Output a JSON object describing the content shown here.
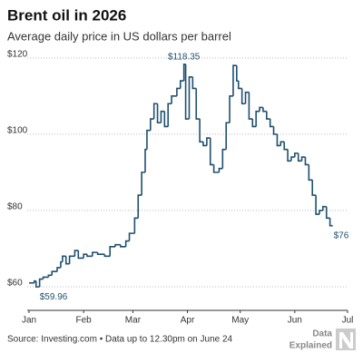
{
  "chart_data": {
    "type": "step-line",
    "title": "Brent oil in 2026",
    "subtitle": "Average daily price in US dollars per barrel",
    "source": "Source: Investing.com • Data up to 12.30pm on June 24",
    "brand": [
      "Data",
      "Explained"
    ],
    "color": "#1f4f6e",
    "grid": true,
    "xlim": [
      0,
      181
    ],
    "xticks": [
      {
        "value": 0,
        "label": "Jan"
      },
      {
        "value": 31,
        "label": "Feb"
      },
      {
        "value": 59,
        "label": "Mar"
      },
      {
        "value": 90,
        "label": "Apr"
      },
      {
        "value": 120,
        "label": "May"
      },
      {
        "value": 151,
        "label": "Jun"
      },
      {
        "value": 181,
        "label": "Jul"
      }
    ],
    "ylim": [
      53.8,
      122.1
    ],
    "yticks": [
      {
        "value": 60,
        "label": "$60"
      },
      {
        "value": 80,
        "label": "$80"
      },
      {
        "value": 100,
        "label": "$100"
      },
      {
        "value": 120,
        "label": "$120"
      }
    ],
    "x": [
      0,
      3,
      4,
      6,
      8,
      11,
      13,
      16,
      18,
      19,
      21,
      23,
      26,
      28,
      31,
      33,
      36,
      39,
      43,
      46,
      49,
      52,
      55,
      57,
      60,
      62,
      64,
      66,
      67,
      69,
      71,
      73,
      75,
      77,
      79,
      81,
      84,
      86,
      88,
      89,
      91,
      93,
      95,
      97,
      99,
      101,
      103,
      105,
      108,
      110,
      112,
      114,
      116,
      118,
      119,
      121,
      123,
      125,
      127,
      129,
      131,
      133,
      135,
      137,
      139,
      141,
      143,
      145,
      147,
      149,
      151,
      153,
      155,
      157,
      159,
      161,
      163,
      165,
      167,
      169,
      171
    ],
    "values": [
      61,
      61.5,
      59.96,
      62,
      62.5,
      63,
      64,
      65,
      66.5,
      68,
      66,
      68,
      69.5,
      67.5,
      68.5,
      68,
      69,
      68.5,
      68,
      70.5,
      71,
      70.5,
      72,
      74,
      78,
      84,
      90,
      96,
      101,
      104,
      108,
      103,
      106,
      102,
      108,
      110,
      112,
      114,
      118.35,
      104,
      115,
      112,
      104,
      98,
      97,
      99,
      92,
      90,
      91,
      96,
      103,
      110,
      118,
      114,
      112,
      108,
      111,
      104,
      102,
      106,
      107,
      106,
      104,
      102,
      100,
      97,
      98,
      96,
      93,
      94,
      95,
      93,
      94,
      92,
      88,
      84,
      79,
      80,
      81,
      78,
      76
    ],
    "value_labels": [
      null,
      null,
      "$59.96",
      null,
      null,
      null,
      null,
      null,
      null,
      null,
      null,
      null,
      null,
      null,
      null,
      null,
      null,
      null,
      null,
      null,
      null,
      null,
      null,
      null,
      null,
      null,
      null,
      null,
      null,
      null,
      null,
      null,
      null,
      null,
      null,
      null,
      null,
      null,
      "$118.35",
      null,
      null,
      null,
      null,
      null,
      null,
      null,
      null,
      null,
      null,
      null,
      null,
      null,
      null,
      null,
      null,
      null,
      null,
      null,
      null,
      null,
      null,
      null,
      null,
      null,
      null,
      null,
      null,
      null,
      null,
      null,
      null,
      null,
      null,
      null,
      null,
      null,
      null,
      null,
      null,
      null,
      "$76"
    ]
  }
}
